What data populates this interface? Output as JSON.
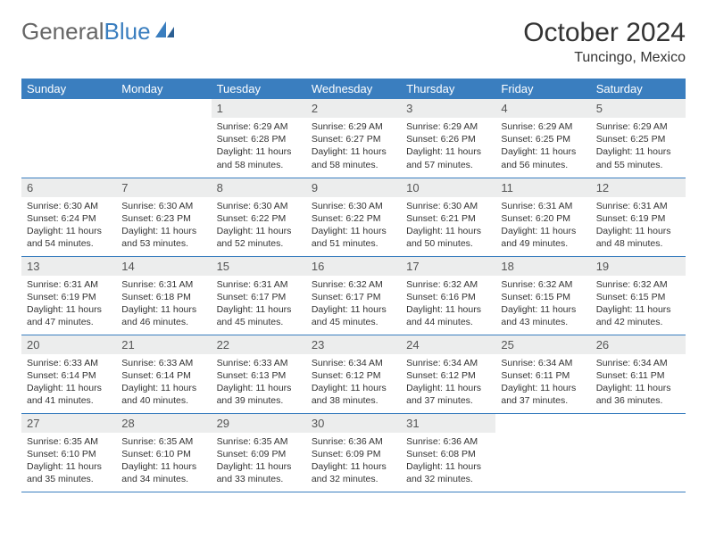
{
  "logo": {
    "part1": "General",
    "part2": "Blue"
  },
  "title": "October 2024",
  "location": "Tuncingo, Mexico",
  "colors": {
    "header_bg": "#3a7ebf",
    "header_text": "#ffffff",
    "daynum_bg": "#eceded",
    "daynum_text": "#555555",
    "body_text": "#333333",
    "row_border": "#3a7ebf"
  },
  "weekdays": [
    "Sunday",
    "Monday",
    "Tuesday",
    "Wednesday",
    "Thursday",
    "Friday",
    "Saturday"
  ],
  "weeks": [
    [
      {
        "num": "",
        "sunrise": "",
        "sunset": "",
        "daylight": ""
      },
      {
        "num": "",
        "sunrise": "",
        "sunset": "",
        "daylight": ""
      },
      {
        "num": "1",
        "sunrise": "Sunrise: 6:29 AM",
        "sunset": "Sunset: 6:28 PM",
        "daylight": "Daylight: 11 hours and 58 minutes."
      },
      {
        "num": "2",
        "sunrise": "Sunrise: 6:29 AM",
        "sunset": "Sunset: 6:27 PM",
        "daylight": "Daylight: 11 hours and 58 minutes."
      },
      {
        "num": "3",
        "sunrise": "Sunrise: 6:29 AM",
        "sunset": "Sunset: 6:26 PM",
        "daylight": "Daylight: 11 hours and 57 minutes."
      },
      {
        "num": "4",
        "sunrise": "Sunrise: 6:29 AM",
        "sunset": "Sunset: 6:25 PM",
        "daylight": "Daylight: 11 hours and 56 minutes."
      },
      {
        "num": "5",
        "sunrise": "Sunrise: 6:29 AM",
        "sunset": "Sunset: 6:25 PM",
        "daylight": "Daylight: 11 hours and 55 minutes."
      }
    ],
    [
      {
        "num": "6",
        "sunrise": "Sunrise: 6:30 AM",
        "sunset": "Sunset: 6:24 PM",
        "daylight": "Daylight: 11 hours and 54 minutes."
      },
      {
        "num": "7",
        "sunrise": "Sunrise: 6:30 AM",
        "sunset": "Sunset: 6:23 PM",
        "daylight": "Daylight: 11 hours and 53 minutes."
      },
      {
        "num": "8",
        "sunrise": "Sunrise: 6:30 AM",
        "sunset": "Sunset: 6:22 PM",
        "daylight": "Daylight: 11 hours and 52 minutes."
      },
      {
        "num": "9",
        "sunrise": "Sunrise: 6:30 AM",
        "sunset": "Sunset: 6:22 PM",
        "daylight": "Daylight: 11 hours and 51 minutes."
      },
      {
        "num": "10",
        "sunrise": "Sunrise: 6:30 AM",
        "sunset": "Sunset: 6:21 PM",
        "daylight": "Daylight: 11 hours and 50 minutes."
      },
      {
        "num": "11",
        "sunrise": "Sunrise: 6:31 AM",
        "sunset": "Sunset: 6:20 PM",
        "daylight": "Daylight: 11 hours and 49 minutes."
      },
      {
        "num": "12",
        "sunrise": "Sunrise: 6:31 AM",
        "sunset": "Sunset: 6:19 PM",
        "daylight": "Daylight: 11 hours and 48 minutes."
      }
    ],
    [
      {
        "num": "13",
        "sunrise": "Sunrise: 6:31 AM",
        "sunset": "Sunset: 6:19 PM",
        "daylight": "Daylight: 11 hours and 47 minutes."
      },
      {
        "num": "14",
        "sunrise": "Sunrise: 6:31 AM",
        "sunset": "Sunset: 6:18 PM",
        "daylight": "Daylight: 11 hours and 46 minutes."
      },
      {
        "num": "15",
        "sunrise": "Sunrise: 6:31 AM",
        "sunset": "Sunset: 6:17 PM",
        "daylight": "Daylight: 11 hours and 45 minutes."
      },
      {
        "num": "16",
        "sunrise": "Sunrise: 6:32 AM",
        "sunset": "Sunset: 6:17 PM",
        "daylight": "Daylight: 11 hours and 45 minutes."
      },
      {
        "num": "17",
        "sunrise": "Sunrise: 6:32 AM",
        "sunset": "Sunset: 6:16 PM",
        "daylight": "Daylight: 11 hours and 44 minutes."
      },
      {
        "num": "18",
        "sunrise": "Sunrise: 6:32 AM",
        "sunset": "Sunset: 6:15 PM",
        "daylight": "Daylight: 11 hours and 43 minutes."
      },
      {
        "num": "19",
        "sunrise": "Sunrise: 6:32 AM",
        "sunset": "Sunset: 6:15 PM",
        "daylight": "Daylight: 11 hours and 42 minutes."
      }
    ],
    [
      {
        "num": "20",
        "sunrise": "Sunrise: 6:33 AM",
        "sunset": "Sunset: 6:14 PM",
        "daylight": "Daylight: 11 hours and 41 minutes."
      },
      {
        "num": "21",
        "sunrise": "Sunrise: 6:33 AM",
        "sunset": "Sunset: 6:14 PM",
        "daylight": "Daylight: 11 hours and 40 minutes."
      },
      {
        "num": "22",
        "sunrise": "Sunrise: 6:33 AM",
        "sunset": "Sunset: 6:13 PM",
        "daylight": "Daylight: 11 hours and 39 minutes."
      },
      {
        "num": "23",
        "sunrise": "Sunrise: 6:34 AM",
        "sunset": "Sunset: 6:12 PM",
        "daylight": "Daylight: 11 hours and 38 minutes."
      },
      {
        "num": "24",
        "sunrise": "Sunrise: 6:34 AM",
        "sunset": "Sunset: 6:12 PM",
        "daylight": "Daylight: 11 hours and 37 minutes."
      },
      {
        "num": "25",
        "sunrise": "Sunrise: 6:34 AM",
        "sunset": "Sunset: 6:11 PM",
        "daylight": "Daylight: 11 hours and 37 minutes."
      },
      {
        "num": "26",
        "sunrise": "Sunrise: 6:34 AM",
        "sunset": "Sunset: 6:11 PM",
        "daylight": "Daylight: 11 hours and 36 minutes."
      }
    ],
    [
      {
        "num": "27",
        "sunrise": "Sunrise: 6:35 AM",
        "sunset": "Sunset: 6:10 PM",
        "daylight": "Daylight: 11 hours and 35 minutes."
      },
      {
        "num": "28",
        "sunrise": "Sunrise: 6:35 AM",
        "sunset": "Sunset: 6:10 PM",
        "daylight": "Daylight: 11 hours and 34 minutes."
      },
      {
        "num": "29",
        "sunrise": "Sunrise: 6:35 AM",
        "sunset": "Sunset: 6:09 PM",
        "daylight": "Daylight: 11 hours and 33 minutes."
      },
      {
        "num": "30",
        "sunrise": "Sunrise: 6:36 AM",
        "sunset": "Sunset: 6:09 PM",
        "daylight": "Daylight: 11 hours and 32 minutes."
      },
      {
        "num": "31",
        "sunrise": "Sunrise: 6:36 AM",
        "sunset": "Sunset: 6:08 PM",
        "daylight": "Daylight: 11 hours and 32 minutes."
      },
      {
        "num": "",
        "sunrise": "",
        "sunset": "",
        "daylight": ""
      },
      {
        "num": "",
        "sunrise": "",
        "sunset": "",
        "daylight": ""
      }
    ]
  ]
}
